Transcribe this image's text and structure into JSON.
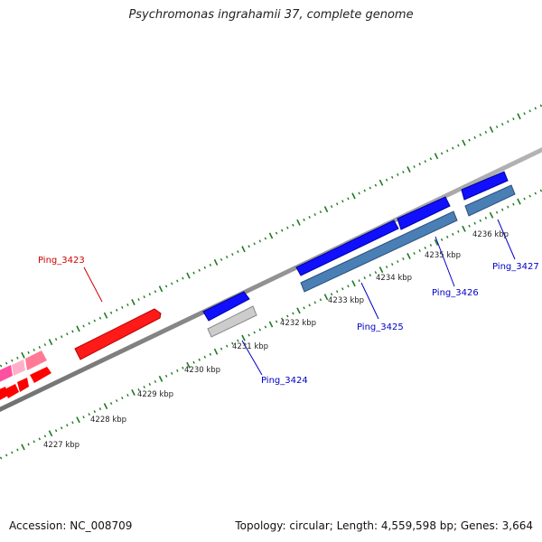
{
  "title": "Psychromonas ingrahamii 37, complete genome",
  "footer": {
    "accession": "Accession: NC_008709",
    "stats": "Topology: circular; Length: 4,559,598 bp; Genes: 3,664"
  },
  "colors": {
    "backbone": "#8a8a8a",
    "tick": "#1f7a1f",
    "forward_cds": "#0000ff",
    "reverse_cds": "#4a7fb5",
    "red_gene": "#ff0000",
    "pink_gene": "#ff4fa0",
    "grey_gene": "#cccccc",
    "label_blue": "#0000c8",
    "label_red": "#cc0000"
  },
  "scale_labels": [
    "4227 kbp",
    "4228 kbp",
    "4229 kbp",
    "4230 kbp",
    "4231 kbp",
    "4232 kbp",
    "4233 kbp",
    "4234 kbp",
    "4235 kbp",
    "4236 kbp"
  ],
  "gene_labels": [
    {
      "text": "Ping_3423",
      "color": "red"
    },
    {
      "text": "Ping_3424",
      "color": "blue"
    },
    {
      "text": "Ping_3425",
      "color": "blue"
    },
    {
      "text": "Ping_3426",
      "color": "blue"
    },
    {
      "text": "Ping_3427",
      "color": "blue"
    }
  ]
}
